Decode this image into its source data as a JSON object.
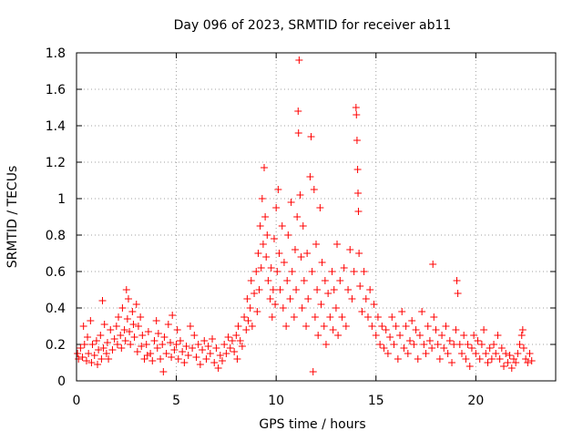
{
  "chart_data": {
    "type": "scatter",
    "title": "Day 096 of 2023, SRMTID for receiver ab11",
    "xlabel": "GPS time / hours",
    "ylabel": "SRMTID / TECUs",
    "xlim": [
      0,
      24
    ],
    "ylim": [
      0,
      1.8
    ],
    "xticks": [
      0,
      5,
      10,
      15,
      20
    ],
    "xtick_labels": [
      "0",
      "5",
      "10",
      "15",
      "20"
    ],
    "yticks": [
      0,
      0.2,
      0.4,
      0.6,
      0.8,
      1.0,
      1.2,
      1.4,
      1.6,
      1.8
    ],
    "ytick_labels": [
      "0",
      "0.2",
      "0.4",
      "0.6",
      "0.8",
      "1",
      "1.2",
      "1.4",
      "1.6",
      "1.8"
    ],
    "grid": true,
    "marker": "+",
    "color": "#ff0000",
    "series": [
      {
        "name": "SRMTID",
        "points": [
          [
            0.05,
            0.15
          ],
          [
            0.1,
            0.12
          ],
          [
            0.2,
            0.18
          ],
          [
            0.3,
            0.13
          ],
          [
            0.35,
            0.3
          ],
          [
            0.4,
            0.2
          ],
          [
            0.5,
            0.11
          ],
          [
            0.55,
            0.24
          ],
          [
            0.6,
            0.15
          ],
          [
            0.7,
            0.33
          ],
          [
            0.75,
            0.1
          ],
          [
            0.8,
            0.2
          ],
          [
            0.9,
            0.14
          ],
          [
            1.0,
            0.22
          ],
          [
            1.05,
            0.09
          ],
          [
            1.1,
            0.17
          ],
          [
            1.2,
            0.25
          ],
          [
            1.25,
            0.12
          ],
          [
            1.3,
            0.44
          ],
          [
            1.35,
            0.18
          ],
          [
            1.4,
            0.31
          ],
          [
            1.5,
            0.15
          ],
          [
            1.55,
            0.21
          ],
          [
            1.6,
            0.12
          ],
          [
            1.7,
            0.28
          ],
          [
            1.8,
            0.17
          ],
          [
            1.9,
            0.23
          ],
          [
            2.0,
            0.3
          ],
          [
            2.05,
            0.2
          ],
          [
            2.1,
            0.35
          ],
          [
            2.2,
            0.25
          ],
          [
            2.25,
            0.18
          ],
          [
            2.3,
            0.4
          ],
          [
            2.4,
            0.28
          ],
          [
            2.45,
            0.22
          ],
          [
            2.5,
            0.5
          ],
          [
            2.55,
            0.34
          ],
          [
            2.6,
            0.45
          ],
          [
            2.65,
            0.27
          ],
          [
            2.7,
            0.2
          ],
          [
            2.8,
            0.38
          ],
          [
            2.85,
            0.31
          ],
          [
            2.9,
            0.24
          ],
          [
            3.0,
            0.42
          ],
          [
            3.05,
            0.16
          ],
          [
            3.1,
            0.3
          ],
          [
            3.2,
            0.35
          ],
          [
            3.25,
            0.19
          ],
          [
            3.3,
            0.25
          ],
          [
            3.4,
            0.12
          ],
          [
            3.5,
            0.2
          ],
          [
            3.55,
            0.14
          ],
          [
            3.6,
            0.27
          ],
          [
            3.7,
            0.15
          ],
          [
            3.8,
            0.11
          ],
          [
            3.9,
            0.22
          ],
          [
            4.0,
            0.33
          ],
          [
            4.05,
            0.18
          ],
          [
            4.1,
            0.26
          ],
          [
            4.2,
            0.12
          ],
          [
            4.3,
            0.2
          ],
          [
            4.35,
            0.05
          ],
          [
            4.4,
            0.24
          ],
          [
            4.5,
            0.15
          ],
          [
            4.6,
            0.31
          ],
          [
            4.7,
            0.21
          ],
          [
            4.75,
            0.13
          ],
          [
            4.8,
            0.36
          ],
          [
            4.9,
            0.17
          ],
          [
            5.0,
            0.2
          ],
          [
            5.05,
            0.28
          ],
          [
            5.1,
            0.12
          ],
          [
            5.2,
            0.22
          ],
          [
            5.3,
            0.16
          ],
          [
            5.4,
            0.1
          ],
          [
            5.5,
            0.19
          ],
          [
            5.6,
            0.14
          ],
          [
            5.7,
            0.3
          ],
          [
            5.8,
            0.18
          ],
          [
            5.9,
            0.25
          ],
          [
            6.0,
            0.13
          ],
          [
            6.1,
            0.2
          ],
          [
            6.2,
            0.09
          ],
          [
            6.3,
            0.17
          ],
          [
            6.4,
            0.22
          ],
          [
            6.5,
            0.12
          ],
          [
            6.6,
            0.19
          ],
          [
            6.7,
            0.15
          ],
          [
            6.8,
            0.23
          ],
          [
            6.9,
            0.1
          ],
          [
            7.0,
            0.18
          ],
          [
            7.1,
            0.07
          ],
          [
            7.2,
            0.14
          ],
          [
            7.3,
            0.11
          ],
          [
            7.4,
            0.2
          ],
          [
            7.5,
            0.15
          ],
          [
            7.6,
            0.24
          ],
          [
            7.7,
            0.18
          ],
          [
            7.8,
            0.22
          ],
          [
            7.9,
            0.16
          ],
          [
            8.0,
            0.25
          ],
          [
            8.05,
            0.12
          ],
          [
            8.1,
            0.3
          ],
          [
            8.2,
            0.22
          ],
          [
            8.3,
            0.19
          ],
          [
            8.4,
            0.35
          ],
          [
            8.5,
            0.28
          ],
          [
            8.55,
            0.45
          ],
          [
            8.6,
            0.33
          ],
          [
            8.7,
            0.4
          ],
          [
            8.75,
            0.55
          ],
          [
            8.8,
            0.3
          ],
          [
            8.9,
            0.48
          ],
          [
            9.0,
            0.6
          ],
          [
            9.05,
            0.38
          ],
          [
            9.1,
            0.7
          ],
          [
            9.15,
            0.5
          ],
          [
            9.2,
            0.85
          ],
          [
            9.25,
            0.62
          ],
          [
            9.3,
            1.0
          ],
          [
            9.35,
            0.75
          ],
          [
            9.4,
            1.17
          ],
          [
            9.45,
            0.9
          ],
          [
            9.5,
            0.68
          ],
          [
            9.55,
            0.8
          ],
          [
            9.6,
            0.55
          ],
          [
            9.7,
            0.45
          ],
          [
            9.75,
            0.62
          ],
          [
            9.8,
            0.35
          ],
          [
            9.85,
            0.5
          ],
          [
            9.9,
            0.78
          ],
          [
            9.95,
            0.42
          ],
          [
            10.0,
            0.95
          ],
          [
            10.05,
            0.6
          ],
          [
            10.1,
            1.05
          ],
          [
            10.15,
            0.7
          ],
          [
            10.2,
            0.5
          ],
          [
            10.3,
            0.85
          ],
          [
            10.35,
            0.4
          ],
          [
            10.4,
            0.65
          ],
          [
            10.5,
            0.3
          ],
          [
            10.55,
            0.55
          ],
          [
            10.6,
            0.8
          ],
          [
            10.7,
            0.45
          ],
          [
            10.75,
            0.98
          ],
          [
            10.8,
            0.6
          ],
          [
            10.9,
            0.35
          ],
          [
            10.95,
            0.72
          ],
          [
            11.0,
            0.5
          ],
          [
            11.05,
            0.9
          ],
          [
            11.1,
            1.48
          ],
          [
            11.12,
            1.36
          ],
          [
            11.15,
            1.76
          ],
          [
            11.2,
            1.02
          ],
          [
            11.25,
            0.68
          ],
          [
            11.3,
            0.4
          ],
          [
            11.35,
            0.85
          ],
          [
            11.4,
            0.55
          ],
          [
            11.5,
            0.3
          ],
          [
            11.55,
            0.7
          ],
          [
            11.6,
            0.45
          ],
          [
            11.7,
            1.12
          ],
          [
            11.75,
            1.34
          ],
          [
            11.8,
            0.6
          ],
          [
            11.85,
            0.05
          ],
          [
            11.9,
            1.05
          ],
          [
            11.95,
            0.35
          ],
          [
            12.0,
            0.75
          ],
          [
            12.05,
            0.5
          ],
          [
            12.1,
            0.25
          ],
          [
            12.2,
            0.95
          ],
          [
            12.25,
            0.42
          ],
          [
            12.3,
            0.65
          ],
          [
            12.4,
            0.3
          ],
          [
            12.45,
            0.55
          ],
          [
            12.5,
            0.2
          ],
          [
            12.6,
            0.48
          ],
          [
            12.7,
            0.35
          ],
          [
            12.8,
            0.6
          ],
          [
            12.85,
            0.28
          ],
          [
            12.9,
            0.5
          ],
          [
            13.0,
            0.4
          ],
          [
            13.05,
            0.75
          ],
          [
            13.1,
            0.25
          ],
          [
            13.2,
            0.55
          ],
          [
            13.3,
            0.35
          ],
          [
            13.4,
            0.62
          ],
          [
            13.5,
            0.3
          ],
          [
            13.6,
            0.5
          ],
          [
            13.7,
            0.72
          ],
          [
            13.8,
            0.45
          ],
          [
            13.9,
            0.6
          ],
          [
            14.0,
            1.5
          ],
          [
            14.02,
            1.46
          ],
          [
            14.05,
            1.32
          ],
          [
            14.08,
            1.16
          ],
          [
            14.1,
            1.03
          ],
          [
            14.12,
            0.93
          ],
          [
            14.15,
            0.7
          ],
          [
            14.2,
            0.52
          ],
          [
            14.3,
            0.38
          ],
          [
            14.4,
            0.6
          ],
          [
            14.5,
            0.45
          ],
          [
            14.6,
            0.35
          ],
          [
            14.7,
            0.5
          ],
          [
            14.8,
            0.3
          ],
          [
            14.9,
            0.42
          ],
          [
            15.0,
            0.25
          ],
          [
            15.1,
            0.35
          ],
          [
            15.2,
            0.2
          ],
          [
            15.3,
            0.3
          ],
          [
            15.4,
            0.18
          ],
          [
            15.5,
            0.28
          ],
          [
            15.6,
            0.15
          ],
          [
            15.7,
            0.24
          ],
          [
            15.8,
            0.35
          ],
          [
            15.9,
            0.2
          ],
          [
            16.0,
            0.3
          ],
          [
            16.1,
            0.12
          ],
          [
            16.2,
            0.25
          ],
          [
            16.3,
            0.38
          ],
          [
            16.4,
            0.18
          ],
          [
            16.5,
            0.3
          ],
          [
            16.6,
            0.15
          ],
          [
            16.7,
            0.22
          ],
          [
            16.8,
            0.33
          ],
          [
            16.9,
            0.2
          ],
          [
            17.0,
            0.28
          ],
          [
            17.1,
            0.12
          ],
          [
            17.2,
            0.25
          ],
          [
            17.3,
            0.38
          ],
          [
            17.4,
            0.2
          ],
          [
            17.5,
            0.15
          ],
          [
            17.6,
            0.3
          ],
          [
            17.7,
            0.22
          ],
          [
            17.8,
            0.18
          ],
          [
            17.85,
            0.64
          ],
          [
            17.9,
            0.35
          ],
          [
            18.0,
            0.28
          ],
          [
            18.1,
            0.2
          ],
          [
            18.2,
            0.12
          ],
          [
            18.3,
            0.25
          ],
          [
            18.4,
            0.18
          ],
          [
            18.5,
            0.3
          ],
          [
            18.6,
            0.15
          ],
          [
            18.7,
            0.22
          ],
          [
            18.8,
            0.1
          ],
          [
            18.9,
            0.2
          ],
          [
            19.0,
            0.28
          ],
          [
            19.05,
            0.55
          ],
          [
            19.1,
            0.48
          ],
          [
            19.2,
            0.2
          ],
          [
            19.3,
            0.15
          ],
          [
            19.4,
            0.25
          ],
          [
            19.5,
            0.12
          ],
          [
            19.6,
            0.2
          ],
          [
            19.7,
            0.08
          ],
          [
            19.8,
            0.18
          ],
          [
            19.9,
            0.25
          ],
          [
            20.0,
            0.15
          ],
          [
            20.1,
            0.22
          ],
          [
            20.2,
            0.12
          ],
          [
            20.3,
            0.2
          ],
          [
            20.4,
            0.28
          ],
          [
            20.5,
            0.15
          ],
          [
            20.6,
            0.1
          ],
          [
            20.7,
            0.18
          ],
          [
            20.8,
            0.12
          ],
          [
            20.9,
            0.2
          ],
          [
            21.0,
            0.15
          ],
          [
            21.1,
            0.25
          ],
          [
            21.2,
            0.12
          ],
          [
            21.3,
            0.18
          ],
          [
            21.4,
            0.08
          ],
          [
            21.5,
            0.15
          ],
          [
            21.6,
            0.1
          ],
          [
            21.7,
            0.14
          ],
          [
            21.8,
            0.07
          ],
          [
            21.9,
            0.12
          ],
          [
            22.0,
            0.1
          ],
          [
            22.1,
            0.15
          ],
          [
            22.2,
            0.2
          ],
          [
            22.3,
            0.25
          ],
          [
            22.35,
            0.28
          ],
          [
            22.4,
            0.18
          ],
          [
            22.5,
            0.12
          ],
          [
            22.6,
            0.1
          ],
          [
            22.7,
            0.15
          ],
          [
            22.8,
            0.11
          ]
        ]
      }
    ]
  }
}
